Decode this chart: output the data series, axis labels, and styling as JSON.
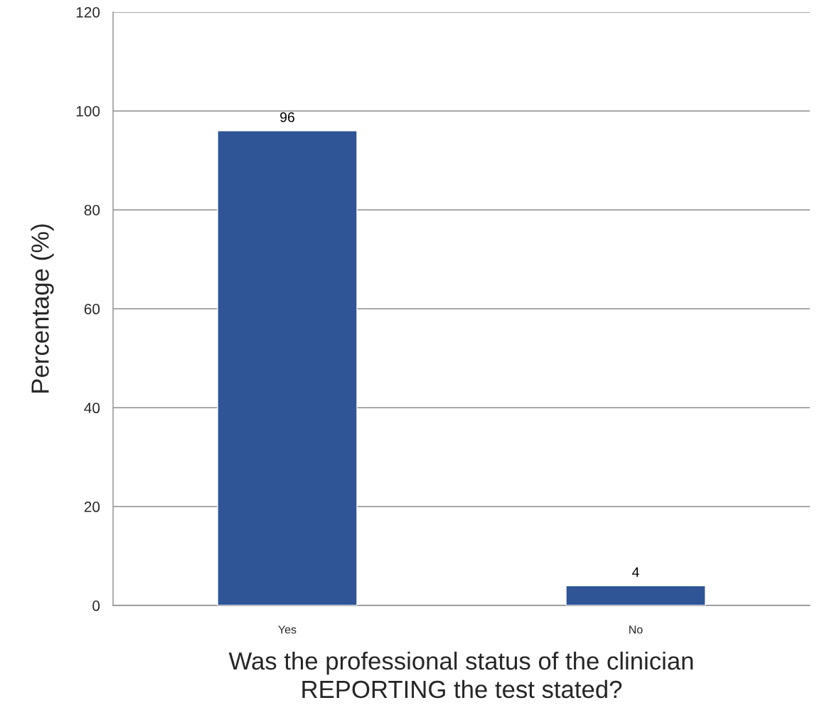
{
  "chart_data": {
    "type": "bar",
    "xlabel": "Was the professional status of the clinician REPORTING the test stated?",
    "ylabel": "Percentage (%)",
    "categories": [
      "Yes",
      "No"
    ],
    "series": [
      {
        "color": "#2f5597",
        "values": [
          96,
          4
        ]
      }
    ],
    "ylim": [
      0,
      120
    ],
    "yticks": [
      0,
      20,
      40,
      60,
      80,
      100,
      120
    ],
    "grid": "y",
    "data_labels": true
  }
}
